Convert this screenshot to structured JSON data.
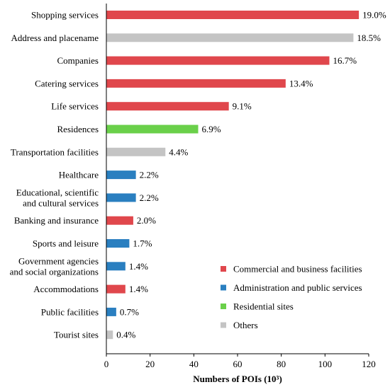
{
  "chart_data": {
    "type": "bar",
    "orientation": "horizontal",
    "xlabel": "Numbers of POIs (10³)",
    "xlim": [
      0,
      120
    ],
    "xticks": [
      0,
      20,
      40,
      60,
      80,
      100,
      120
    ],
    "grid": false,
    "legend_position": "bottom-right",
    "groups": [
      {
        "key": "commercial",
        "name": "Commercial and business facilities",
        "color": "#e0474c"
      },
      {
        "key": "admin",
        "name": "Administration and public services",
        "color": "#2a7fc0"
      },
      {
        "key": "residential",
        "name": "Residential sites",
        "color": "#6ad04a"
      },
      {
        "key": "others",
        "name": "Others",
        "color": "#c4c4c4"
      }
    ],
    "bars": [
      {
        "category": [
          "Shopping services"
        ],
        "value": 115.5,
        "label": "19.0%",
        "group": "commercial"
      },
      {
        "category": [
          "Address and placename"
        ],
        "value": 113,
        "label": "18.5%",
        "group": "others"
      },
      {
        "category": [
          "Companies"
        ],
        "value": 102,
        "label": "16.7%",
        "group": "commercial"
      },
      {
        "category": [
          "Catering services"
        ],
        "value": 82,
        "label": "13.4%",
        "group": "commercial"
      },
      {
        "category": [
          "Life services"
        ],
        "value": 56,
        "label": "9.1%",
        "group": "commercial"
      },
      {
        "category": [
          "Residences"
        ],
        "value": 42,
        "label": "6.9%",
        "group": "residential"
      },
      {
        "category": [
          "Transportation facilities"
        ],
        "value": 27,
        "label": "4.4%",
        "group": "others"
      },
      {
        "category": [
          "Healthcare"
        ],
        "value": 13.5,
        "label": "2.2%",
        "group": "admin"
      },
      {
        "category": [
          "Educational, scientific",
          "and cultural services"
        ],
        "value": 13.5,
        "label": "2.2%",
        "group": "admin"
      },
      {
        "category": [
          "Banking and insurance"
        ],
        "value": 12.3,
        "label": "2.0%",
        "group": "commercial"
      },
      {
        "category": [
          "Sports and leisure"
        ],
        "value": 10.5,
        "label": "1.7%",
        "group": "admin"
      },
      {
        "category": [
          "Government agencies",
          "and social organizations"
        ],
        "value": 8.7,
        "label": "1.4%",
        "group": "admin"
      },
      {
        "category": [
          "Accommodations"
        ],
        "value": 8.7,
        "label": "1.4%",
        "group": "commercial"
      },
      {
        "category": [
          "Public facilities"
        ],
        "value": 4.5,
        "label": "0.7%",
        "group": "admin"
      },
      {
        "category": [
          "Tourist sites"
        ],
        "value": 3,
        "label": "0.4%",
        "group": "others"
      }
    ]
  }
}
